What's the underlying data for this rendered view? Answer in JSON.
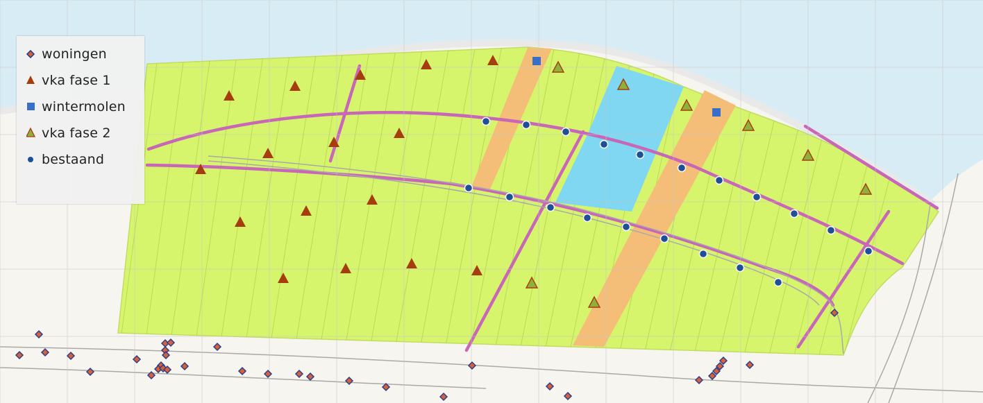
{
  "legend": {
    "items": [
      {
        "symbol": "diamond",
        "label": "woningen",
        "color": "#c0504d"
      },
      {
        "symbol": "triangle",
        "label": "vka fase 1",
        "color": "#a63d0f"
      },
      {
        "symbol": "square",
        "label": "wintermolen",
        "color": "#3a6fc9"
      },
      {
        "symbol": "triangle",
        "label": "vka fase 2",
        "color": "#8fb03a"
      },
      {
        "symbol": "circle",
        "label": "bestaand",
        "color": "#1f5ea8"
      }
    ]
  },
  "colors": {
    "water": "#d8ecf5",
    "land": "#f7f5ef",
    "polder": "#d6f56c",
    "zone_orange": "#f5be78",
    "zone_blue": "#7fd7f2",
    "road": "#c866b8",
    "grid": "#c8c8c8",
    "triangle_fase1": "#a63d0f",
    "triangle_fase2": "#7f8f3b",
    "square": "#3a6fc9",
    "circle_fill": "#1f4f95",
    "diamond_fill": "#d95f3a",
    "diamond_stroke": "#2b3f86"
  }
}
